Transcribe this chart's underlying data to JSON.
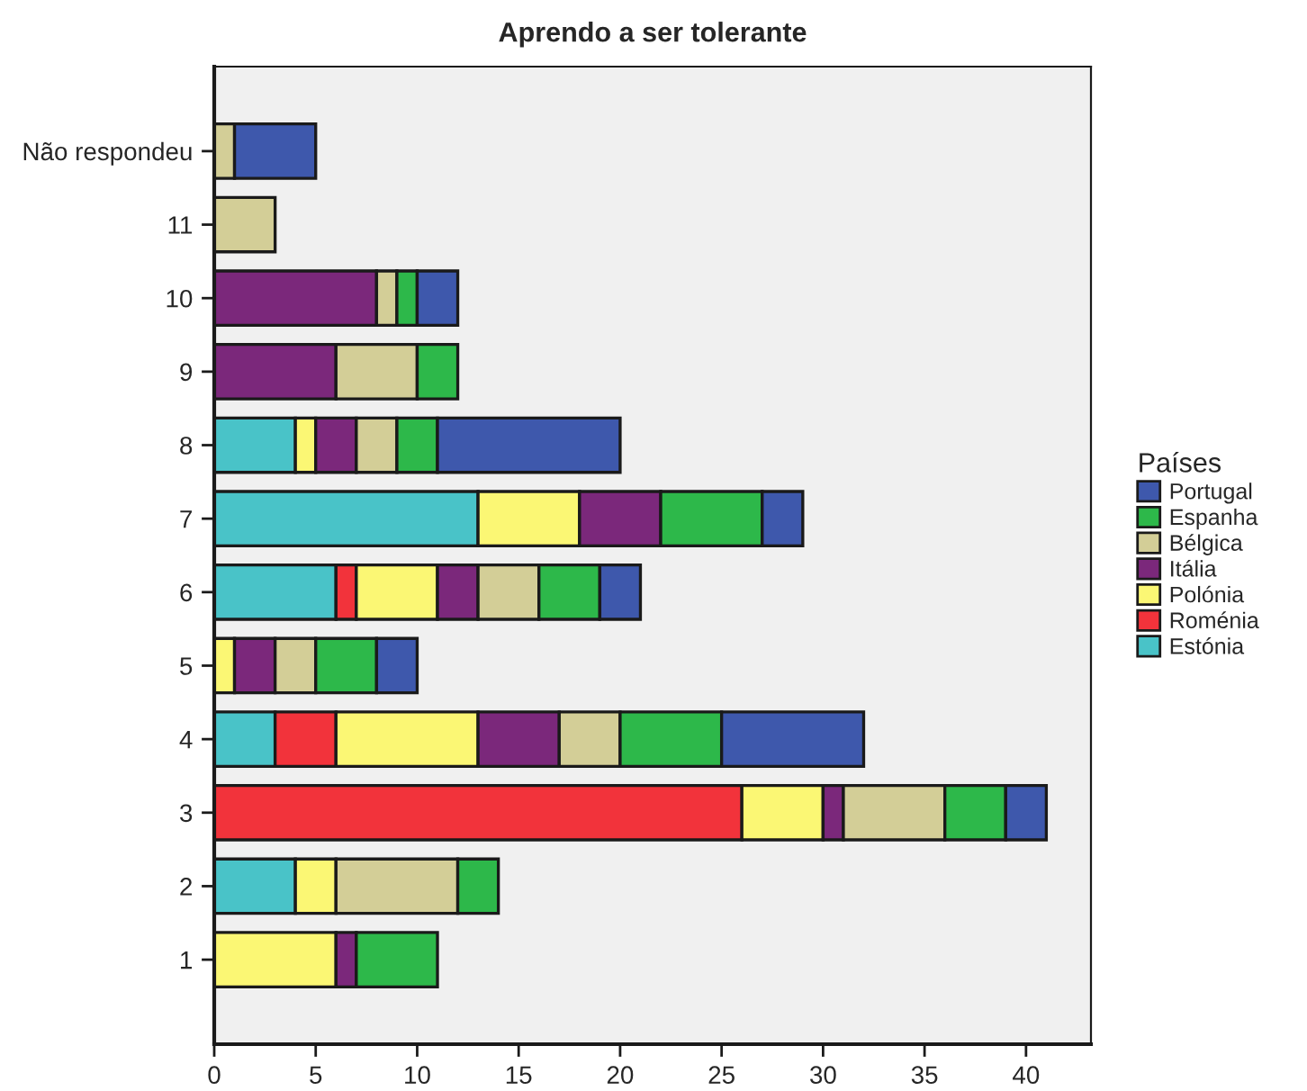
{
  "chart_data": {
    "type": "bar",
    "orientation": "horizontal",
    "stacked": true,
    "title": "Aprendo a ser tolerante",
    "legend_title": "Países",
    "legend": "right",
    "grid": false,
    "categories": [
      "Não respondeu",
      "11",
      "10",
      "9",
      "8",
      "7",
      "6",
      "5",
      "4",
      "3",
      "2",
      "1"
    ],
    "xlim": [
      0,
      43.2
    ],
    "xticks": [
      0,
      5,
      10,
      15,
      20,
      25,
      30,
      35,
      40
    ],
    "series": [
      {
        "name": "Estónia",
        "color": "#49c3c8",
        "values": [
          null,
          null,
          null,
          null,
          4,
          13,
          6,
          null,
          3,
          null,
          4,
          null
        ]
      },
      {
        "name": "Roménia",
        "color": "#f2333b",
        "values": [
          null,
          null,
          null,
          null,
          null,
          null,
          1,
          null,
          3,
          26,
          null,
          null
        ]
      },
      {
        "name": "Polónia",
        "color": "#fbf774",
        "values": [
          null,
          null,
          null,
          null,
          1,
          5,
          4,
          1,
          7,
          4,
          2,
          6
        ]
      },
      {
        "name": "Itália",
        "color": "#7b287b",
        "values": [
          null,
          null,
          8,
          6,
          2,
          4,
          2,
          2,
          4,
          1,
          null,
          1
        ]
      },
      {
        "name": "Bélgica",
        "color": "#d3ce97",
        "values": [
          1,
          3,
          1,
          4,
          2,
          null,
          3,
          2,
          3,
          5,
          6,
          null
        ]
      },
      {
        "name": "Espanha",
        "color": "#2db84a",
        "values": [
          null,
          null,
          1,
          2,
          2,
          5,
          3,
          3,
          5,
          3,
          2,
          4
        ]
      },
      {
        "name": "Portugal",
        "color": "#3e58ac",
        "values": [
          4,
          null,
          2,
          null,
          9,
          2,
          2,
          2,
          7,
          2,
          null,
          null
        ]
      }
    ]
  }
}
